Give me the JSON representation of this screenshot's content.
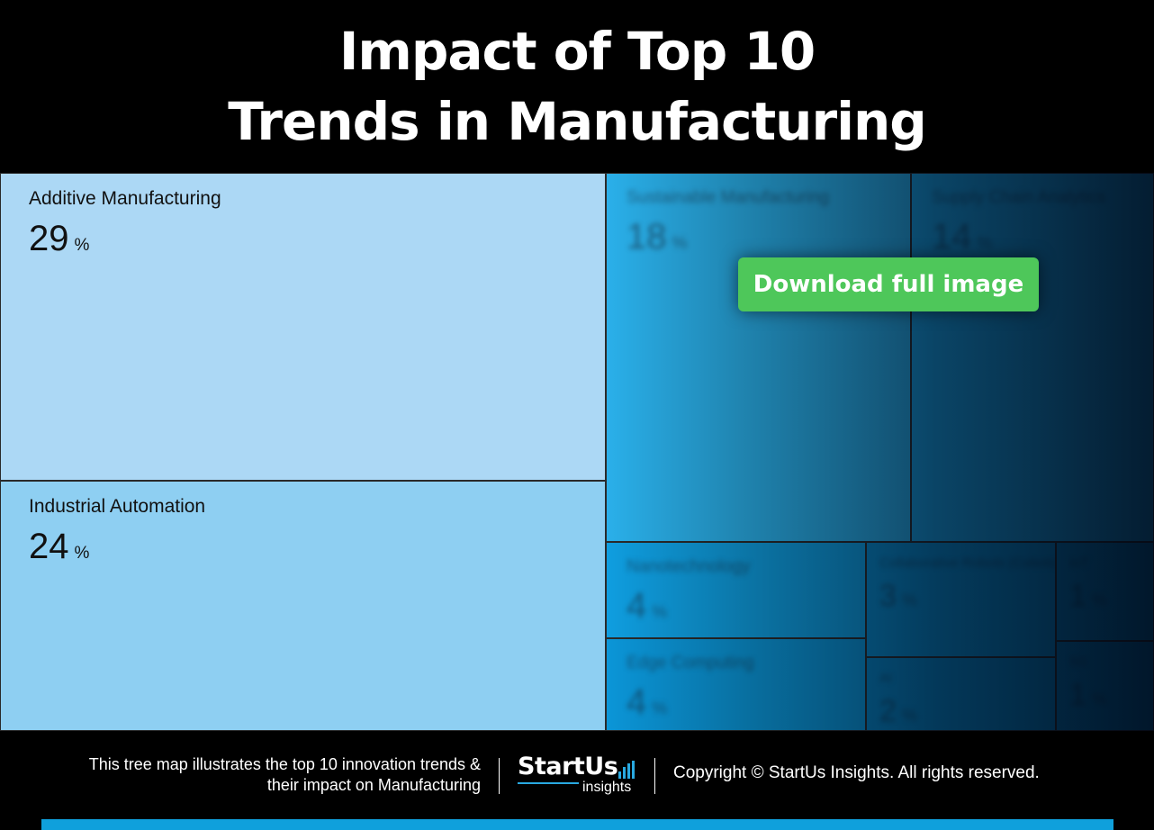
{
  "header": {
    "title_line1": "Impact of Top 10",
    "title_line2": "Trends in Manufacturing"
  },
  "chart_data": {
    "type": "treemap",
    "title": "Impact of Top 10 Trends in Manufacturing",
    "unit": "%",
    "items": [
      {
        "name": "Additive Manufacturing",
        "value": 29,
        "color": "#acd8f5",
        "blurred": false
      },
      {
        "name": "Industrial Automation",
        "value": 24,
        "color": "#8ecff2",
        "blurred": false
      },
      {
        "name": "Sustainable Manufacturing",
        "value": 18,
        "color": "#2ab0ea",
        "blurred": true
      },
      {
        "name": "Supply Chain Analytics",
        "value": 14,
        "color": "#1aa4e4",
        "blurred": true
      },
      {
        "name": "Nanotechnology",
        "value": 4,
        "color": "#0f9ee0",
        "blurred": true
      },
      {
        "name": "Edge Computing",
        "value": 4,
        "color": "#0b96d8",
        "blurred": true
      },
      {
        "name": "Collaborative Robots (Cobots)",
        "value": 3,
        "color": "#0a8ccc",
        "blurred": true
      },
      {
        "name": "AI",
        "value": 2,
        "color": "#0885c4",
        "blurred": true
      },
      {
        "name": "IoT",
        "value": 1,
        "color": "#0780bc",
        "blurred": true
      },
      {
        "name": "5G",
        "value": 1,
        "color": "#067ab6",
        "blurred": true
      }
    ],
    "pct_symbol": "%"
  },
  "cta": {
    "label": "Download full image"
  },
  "footer": {
    "caption_line1": "This tree map illustrates the top 10 innovation trends &",
    "caption_line2": "their impact on Manufacturing",
    "logo_main": "StartUs",
    "logo_sub": "insights",
    "copyright": "Copyright © StartUs Insights. All rights reserved.",
    "accent_color": "#29a9e0"
  }
}
